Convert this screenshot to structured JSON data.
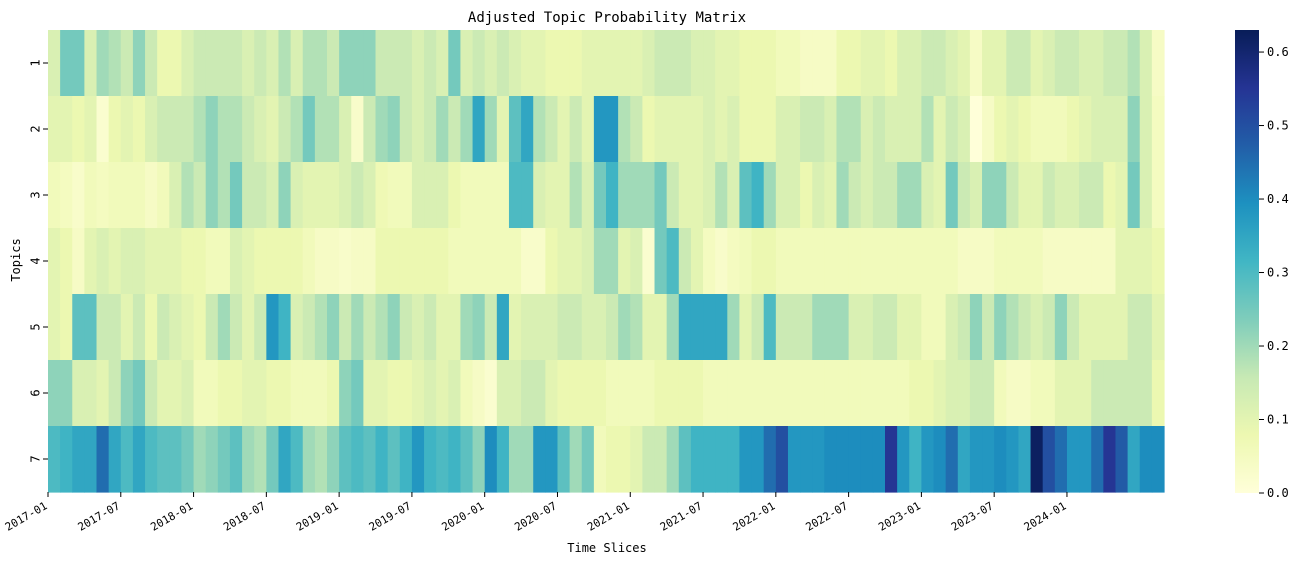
{
  "chart_data": {
    "type": "heatmap",
    "title": "Adjusted Topic Probability Matrix",
    "xlabel": "Time Slices",
    "ylabel": "Topics",
    "y_categories": [
      "1",
      "2",
      "3",
      "4",
      "5",
      "6",
      "7"
    ],
    "x_tick_labels": [
      "2017-01",
      "2017-07",
      "2018-01",
      "2018-07",
      "2019-01",
      "2019-07",
      "2020-01",
      "2020-07",
      "2021-01",
      "2021-07",
      "2022-01",
      "2022-07",
      "2023-01",
      "2023-07",
      "2024-01"
    ],
    "x_tick_interval_months": 6,
    "n_columns": 92,
    "colormap": "YlGnBu",
    "colormap_stops": [
      "#ffffd9",
      "#edf8b1",
      "#c7e9b4",
      "#7fcdbb",
      "#41b6c4",
      "#1d91c0",
      "#225ea8",
      "#253494",
      "#081d58"
    ],
    "colorbar": {
      "range": [
        0.0,
        0.63
      ],
      "ticks": [
        "0.0",
        "0.1",
        "0.2",
        "0.3",
        "0.4",
        "0.5",
        "0.6"
      ]
    },
    "values": [
      [
        0.12,
        0.25,
        0.25,
        0.12,
        0.2,
        0.18,
        0.15,
        0.22,
        0.15,
        0.08,
        0.08,
        0.12,
        0.15,
        0.15,
        0.15,
        0.15,
        0.12,
        0.15,
        0.12,
        0.18,
        0.12,
        0.18,
        0.18,
        0.15,
        0.22,
        0.22,
        0.22,
        0.15,
        0.15,
        0.15,
        0.12,
        0.15,
        0.12,
        0.25,
        0.12,
        0.15,
        0.12,
        0.15,
        0.12,
        0.1,
        0.1,
        0.08,
        0.08,
        0.08,
        0.1,
        0.1,
        0.1,
        0.1,
        0.1,
        0.12,
        0.15,
        0.15,
        0.15,
        0.12,
        0.12,
        0.1,
        0.1,
        0.08,
        0.08,
        0.08,
        0.06,
        0.06,
        0.04,
        0.04,
        0.04,
        0.08,
        0.08,
        0.1,
        0.1,
        0.08,
        0.12,
        0.12,
        0.15,
        0.15,
        0.12,
        0.1,
        0.04,
        0.1,
        0.1,
        0.15,
        0.15,
        0.1,
        0.12,
        0.15,
        0.15,
        0.12,
        0.12,
        0.15,
        0.15,
        0.18,
        0.12,
        0.04
      ],
      [
        0.1,
        0.1,
        0.08,
        0.1,
        0.02,
        0.08,
        0.1,
        0.08,
        0.12,
        0.15,
        0.15,
        0.15,
        0.18,
        0.22,
        0.18,
        0.18,
        0.15,
        0.12,
        0.1,
        0.15,
        0.18,
        0.25,
        0.18,
        0.18,
        0.12,
        0.03,
        0.15,
        0.2,
        0.22,
        0.15,
        0.12,
        0.15,
        0.2,
        0.15,
        0.2,
        0.35,
        0.2,
        0.1,
        0.28,
        0.35,
        0.18,
        0.15,
        0.1,
        0.15,
        0.1,
        0.38,
        0.38,
        0.18,
        0.15,
        0.08,
        0.1,
        0.1,
        0.1,
        0.1,
        0.12,
        0.1,
        0.12,
        0.08,
        0.08,
        0.08,
        0.12,
        0.12,
        0.15,
        0.15,
        0.12,
        0.18,
        0.18,
        0.12,
        0.15,
        0.12,
        0.12,
        0.12,
        0.18,
        0.1,
        0.15,
        0.12,
        0.0,
        0.04,
        0.08,
        0.1,
        0.08,
        0.06,
        0.06,
        0.06,
        0.08,
        0.1,
        0.12,
        0.12,
        0.12,
        0.22,
        0.12,
        0.05
      ],
      [
        0.06,
        0.05,
        0.03,
        0.06,
        0.05,
        0.06,
        0.06,
        0.06,
        0.04,
        0.06,
        0.12,
        0.18,
        0.15,
        0.22,
        0.18,
        0.25,
        0.15,
        0.15,
        0.12,
        0.22,
        0.12,
        0.1,
        0.1,
        0.1,
        0.12,
        0.15,
        0.12,
        0.07,
        0.06,
        0.06,
        0.12,
        0.12,
        0.12,
        0.08,
        0.06,
        0.06,
        0.06,
        0.06,
        0.3,
        0.3,
        0.12,
        0.1,
        0.1,
        0.18,
        0.12,
        0.25,
        0.32,
        0.2,
        0.2,
        0.2,
        0.25,
        0.15,
        0.1,
        0.1,
        0.12,
        0.18,
        0.12,
        0.28,
        0.32,
        0.2,
        0.12,
        0.12,
        0.08,
        0.12,
        0.1,
        0.2,
        0.15,
        0.12,
        0.15,
        0.15,
        0.2,
        0.2,
        0.12,
        0.1,
        0.25,
        0.15,
        0.12,
        0.22,
        0.22,
        0.15,
        0.1,
        0.1,
        0.15,
        0.12,
        0.12,
        0.15,
        0.15,
        0.08,
        0.1,
        0.25,
        0.12,
        0.05
      ],
      [
        0.1,
        0.08,
        0.04,
        0.1,
        0.12,
        0.1,
        0.12,
        0.12,
        0.1,
        0.1,
        0.1,
        0.08,
        0.08,
        0.06,
        0.06,
        0.12,
        0.1,
        0.08,
        0.08,
        0.08,
        0.08,
        0.06,
        0.04,
        0.04,
        0.03,
        0.04,
        0.04,
        0.08,
        0.08,
        0.08,
        0.08,
        0.08,
        0.08,
        0.06,
        0.06,
        0.06,
        0.06,
        0.06,
        0.06,
        0.03,
        0.03,
        0.08,
        0.1,
        0.1,
        0.12,
        0.2,
        0.2,
        0.1,
        0.12,
        0.02,
        0.25,
        0.3,
        0.15,
        0.1,
        0.05,
        0.03,
        0.05,
        0.06,
        0.08,
        0.08,
        0.06,
        0.06,
        0.06,
        0.06,
        0.06,
        0.06,
        0.06,
        0.06,
        0.06,
        0.06,
        0.06,
        0.06,
        0.06,
        0.06,
        0.06,
        0.04,
        0.04,
        0.04,
        0.06,
        0.06,
        0.06,
        0.06,
        0.04,
        0.04,
        0.04,
        0.04,
        0.04,
        0.04,
        0.1,
        0.1,
        0.1,
        0.08
      ],
      [
        0.1,
        0.08,
        0.28,
        0.28,
        0.15,
        0.15,
        0.1,
        0.15,
        0.08,
        0.15,
        0.12,
        0.1,
        0.08,
        0.15,
        0.2,
        0.15,
        0.1,
        0.15,
        0.38,
        0.32,
        0.12,
        0.15,
        0.18,
        0.22,
        0.15,
        0.2,
        0.15,
        0.18,
        0.22,
        0.15,
        0.12,
        0.15,
        0.1,
        0.1,
        0.2,
        0.22,
        0.15,
        0.35,
        0.1,
        0.12,
        0.12,
        0.12,
        0.15,
        0.15,
        0.12,
        0.12,
        0.15,
        0.2,
        0.18,
        0.1,
        0.1,
        0.2,
        0.35,
        0.35,
        0.35,
        0.35,
        0.2,
        0.1,
        0.15,
        0.3,
        0.15,
        0.15,
        0.15,
        0.2,
        0.2,
        0.2,
        0.12,
        0.12,
        0.15,
        0.15,
        0.1,
        0.1,
        0.06,
        0.06,
        0.12,
        0.15,
        0.22,
        0.15,
        0.22,
        0.18,
        0.15,
        0.12,
        0.15,
        0.22,
        0.15,
        0.1,
        0.1,
        0.1,
        0.1,
        0.15,
        0.15,
        0.1
      ],
      [
        0.22,
        0.22,
        0.12,
        0.12,
        0.1,
        0.15,
        0.22,
        0.25,
        0.15,
        0.1,
        0.1,
        0.12,
        0.06,
        0.06,
        0.08,
        0.08,
        0.1,
        0.1,
        0.08,
        0.08,
        0.06,
        0.06,
        0.06,
        0.08,
        0.22,
        0.25,
        0.1,
        0.1,
        0.08,
        0.08,
        0.1,
        0.12,
        0.1,
        0.12,
        0.06,
        0.04,
        0.02,
        0.12,
        0.12,
        0.15,
        0.15,
        0.1,
        0.08,
        0.08,
        0.08,
        0.08,
        0.06,
        0.06,
        0.06,
        0.06,
        0.08,
        0.08,
        0.08,
        0.08,
        0.06,
        0.06,
        0.06,
        0.06,
        0.06,
        0.06,
        0.06,
        0.06,
        0.06,
        0.06,
        0.06,
        0.06,
        0.06,
        0.06,
        0.06,
        0.06,
        0.06,
        0.08,
        0.08,
        0.1,
        0.12,
        0.12,
        0.15,
        0.15,
        0.06,
        0.04,
        0.04,
        0.06,
        0.06,
        0.1,
        0.1,
        0.1,
        0.15,
        0.15,
        0.15,
        0.15,
        0.15,
        0.08
      ],
      [
        0.3,
        0.32,
        0.35,
        0.35,
        0.45,
        0.35,
        0.3,
        0.35,
        0.3,
        0.28,
        0.28,
        0.25,
        0.2,
        0.22,
        0.25,
        0.28,
        0.2,
        0.18,
        0.25,
        0.35,
        0.3,
        0.2,
        0.18,
        0.22,
        0.28,
        0.3,
        0.28,
        0.32,
        0.28,
        0.32,
        0.38,
        0.32,
        0.3,
        0.32,
        0.28,
        0.22,
        0.4,
        0.32,
        0.2,
        0.2,
        0.38,
        0.38,
        0.28,
        0.2,
        0.25,
        0.06,
        0.08,
        0.08,
        0.1,
        0.15,
        0.15,
        0.2,
        0.28,
        0.32,
        0.32,
        0.32,
        0.32,
        0.38,
        0.38,
        0.45,
        0.5,
        0.38,
        0.38,
        0.38,
        0.4,
        0.4,
        0.4,
        0.4,
        0.4,
        0.55,
        0.38,
        0.32,
        0.38,
        0.4,
        0.45,
        0.35,
        0.38,
        0.38,
        0.4,
        0.38,
        0.35,
        0.62,
        0.5,
        0.45,
        0.38,
        0.38,
        0.45,
        0.55,
        0.48,
        0.35,
        0.4,
        0.4
      ]
    ]
  }
}
